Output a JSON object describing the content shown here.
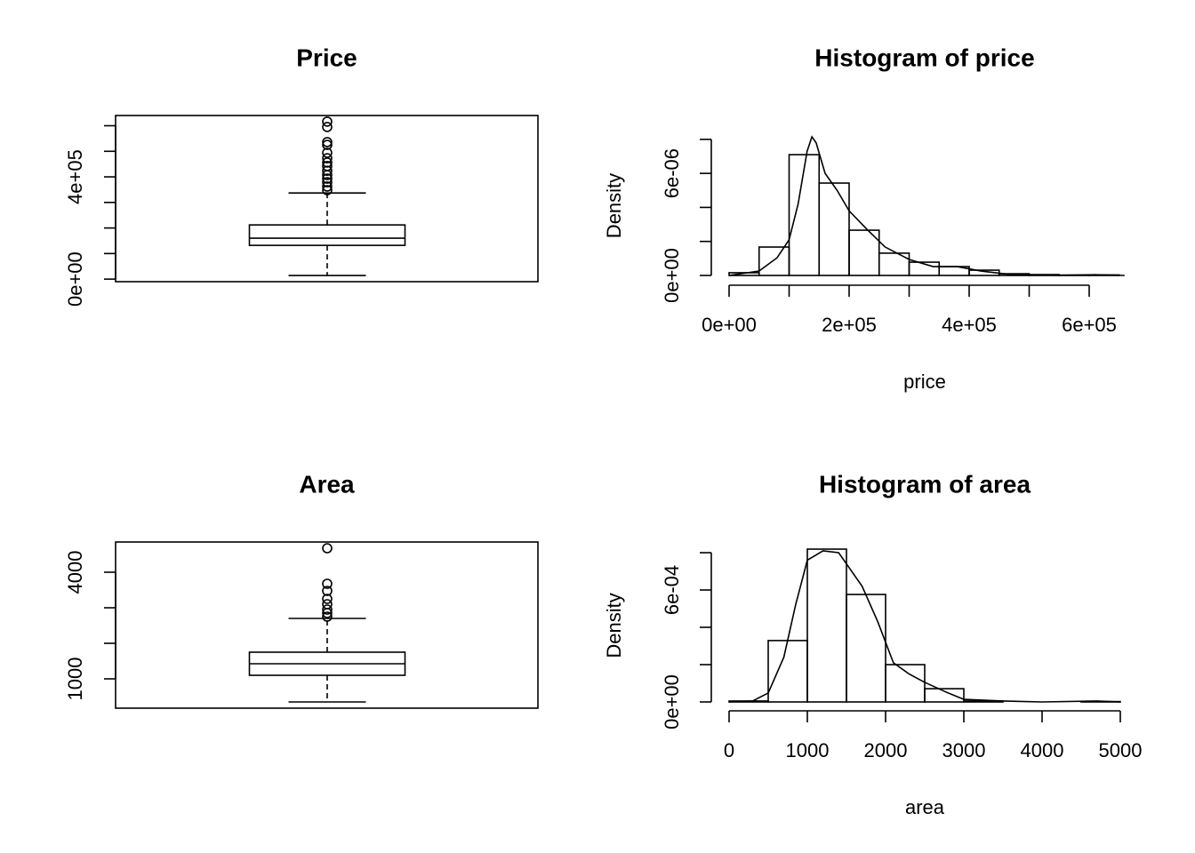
{
  "chart_data": [
    {
      "type": "box",
      "title": "Price",
      "stats": {
        "whislo": 14000,
        "q1": 132000,
        "med": 160000,
        "q3": 212000,
        "whishi": 337000
      },
      "outliers": [
        616000,
        595000,
        536000,
        525000,
        494000,
        473000,
        456000,
        442000,
        424000,
        407000,
        393000,
        379000,
        362000,
        348000
      ],
      "ylim": [
        -10000,
        640000
      ],
      "yticks": [
        {
          "value": 0,
          "label": "0e+00"
        },
        {
          "value": 100000,
          "label": null
        },
        {
          "value": 200000,
          "label": null
        },
        {
          "value": 300000,
          "label": null
        },
        {
          "value": 400000,
          "label": "4e+05"
        },
        {
          "value": 500000,
          "label": null
        },
        {
          "value": 600000,
          "label": null
        }
      ],
      "color": "#000000"
    },
    {
      "type": "histogram",
      "title": "Histogram of price",
      "xlabel": "price",
      "ylabel": "Density",
      "bins": [
        0,
        50000,
        100000,
        150000,
        200000,
        250000,
        300000,
        350000,
        400000,
        450000,
        500000,
        550000,
        600000,
        650000
      ],
      "values": [
        1.6e-07,
        1.67e-06,
        7.1e-06,
        5.43e-06,
        2.66e-06,
        1.31e-06,
        7.8e-07,
        5.2e-07,
        3.1e-07,
        1e-07,
        5e-08,
        2e-08,
        3e-08
      ],
      "line": {
        "x": [
          0,
          50000,
          80000,
          100000,
          115000,
          130000,
          138000,
          145000,
          160000,
          180000,
          200000,
          230000,
          260000,
          300000,
          340000,
          380000,
          420000,
          470000,
          550000,
          610000,
          659000
        ],
        "values": [
          0,
          2.6e-07,
          1.04e-06,
          2.1e-06,
          4.2e-06,
          7.3e-06,
          8.15e-06,
          7.8e-06,
          6e-06,
          5e-06,
          3.8e-06,
          2.7e-06,
          1.67e-06,
          9.4e-07,
          5.2e-07,
          5.2e-07,
          2.6e-07,
          5e-08,
          1e-08,
          4e-08,
          0
        ]
      },
      "xlim": [
        0,
        650000
      ],
      "ylim": [
        0,
        8.2e-06
      ],
      "xticks": [
        {
          "value": 0,
          "label": "0e+00"
        },
        {
          "value": 100000,
          "label": null
        },
        {
          "value": 200000,
          "label": "2e+05"
        },
        {
          "value": 300000,
          "label": null
        },
        {
          "value": 400000,
          "label": "4e+05"
        },
        {
          "value": 500000,
          "label": null
        },
        {
          "value": 600000,
          "label": "6e+05"
        }
      ],
      "yticks": [
        {
          "value": 0,
          "label": "0e+00"
        },
        {
          "value": 2e-06,
          "label": null
        },
        {
          "value": 4e-06,
          "label": null
        },
        {
          "value": 6e-06,
          "label": "6e-06"
        },
        {
          "value": 8e-06,
          "label": null
        }
      ],
      "color": "#000000"
    },
    {
      "type": "box",
      "title": "Area",
      "stats": {
        "whislo": 350,
        "q1": 1100,
        "med": 1425,
        "q3": 1750,
        "whishi": 2700
      },
      "outliers": [
        4675,
        3675,
        3475,
        3250,
        3100,
        2950,
        2850,
        2750
      ],
      "ylim": [
        175,
        4850
      ],
      "yticks": [
        1000,
        {
          "value": 2000,
          "label": null
        },
        {
          "value": 3000,
          "label": null
        },
        4000
      ],
      "color": "#000000"
    },
    {
      "type": "histogram",
      "title": "Histogram of area",
      "xlabel": "area",
      "ylabel": "Density",
      "bins": [
        0,
        500,
        1000,
        1500,
        2000,
        2500,
        3000,
        3500,
        4000,
        4500,
        5000
      ],
      "values": [
        5e-06,
        0.000329,
        0.000819,
        0.000576,
        0.0002,
        7.1e-05,
        5e-06,
        0,
        0,
        2e-06
      ],
      "line": {
        "x": [
          0,
          300,
          500,
          700,
          850,
          1000,
          1200,
          1400,
          1500,
          1700,
          1900,
          2100,
          2300,
          2500,
          2800,
          3000,
          3500,
          4000,
          4700,
          5000
        ],
        "values": [
          0,
          5e-06,
          4.8e-05,
          0.00024,
          0.00052,
          0.00076,
          0.00081,
          0.0008,
          0.00074,
          0.00062,
          0.00043,
          0.00021,
          0.00015,
          0.000105,
          4.8e-05,
          1.4e-05,
          5e-06,
          0,
          5e-06,
          0
        ]
      },
      "xlim": [
        0,
        5000
      ],
      "ylim": [
        0,
        0.00082
      ],
      "xticks": [
        0,
        1000,
        2000,
        3000,
        4000,
        5000
      ],
      "yticks": [
        {
          "value": 0,
          "label": "0e+00"
        },
        {
          "value": 0.0002,
          "label": null
        },
        {
          "value": 0.0004,
          "label": null
        },
        {
          "value": 0.0006,
          "label": "6e-04"
        },
        {
          "value": 0.0008,
          "label": null
        }
      ],
      "color": "#000000"
    }
  ]
}
